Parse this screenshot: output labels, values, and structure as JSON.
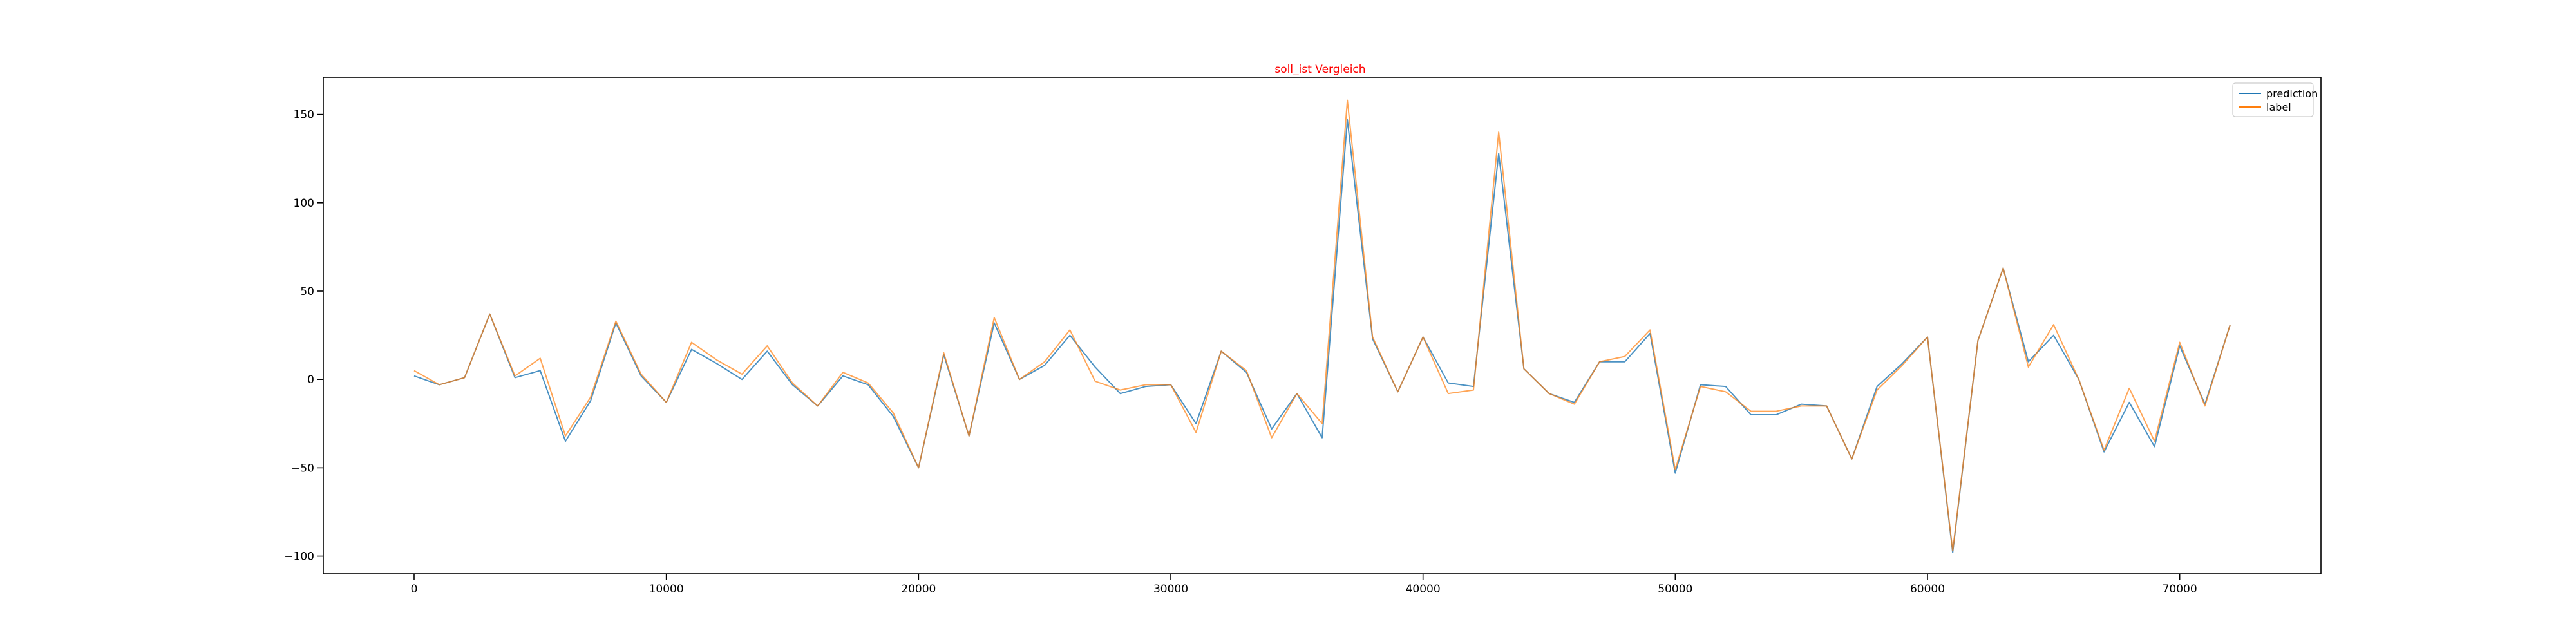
{
  "chart_data": {
    "type": "line",
    "title": "soll_ist Vergleich",
    "title_color": "#ff0000",
    "xlabel": "",
    "ylabel": "",
    "xlim": [
      -3600,
      75600
    ],
    "ylim": [
      -110,
      171
    ],
    "xticks": [
      0,
      10000,
      20000,
      30000,
      40000,
      50000,
      60000,
      70000
    ],
    "yticks": [
      -100,
      -50,
      0,
      50,
      100,
      150
    ],
    "grid": false,
    "legend_position": "top-right",
    "x": [
      0,
      1000,
      2000,
      3000,
      4000,
      5000,
      6000,
      7000,
      8000,
      9000,
      10000,
      11000,
      12000,
      13000,
      14000,
      15000,
      16000,
      17000,
      18000,
      19000,
      20000,
      21000,
      22000,
      23000,
      24000,
      25000,
      26000,
      27000,
      28000,
      29000,
      30000,
      31000,
      32000,
      33000,
      34000,
      35000,
      36000,
      37000,
      38000,
      39000,
      40000,
      41000,
      42000,
      43000,
      44000,
      45000,
      46000,
      47000,
      48000,
      49000,
      50000,
      51000,
      52000,
      53000,
      54000,
      55000,
      56000,
      57000,
      58000,
      59000,
      60000,
      61000,
      62000,
      63000,
      64000,
      65000,
      66000,
      67000,
      68000,
      69000,
      70000,
      71000,
      72000
    ],
    "series": [
      {
        "name": "prediction",
        "color": "#1f77b4",
        "values": [
          2,
          -3,
          1,
          37,
          1,
          5,
          -35,
          -12,
          32,
          2,
          -13,
          17,
          9,
          0,
          16,
          -3,
          -15,
          2,
          -3,
          -21,
          -50,
          14,
          -32,
          32,
          0,
          8,
          25,
          7,
          -8,
          -4,
          -3,
          -25,
          16,
          4,
          -28,
          -8,
          -33,
          147,
          23,
          -7,
          24,
          -2,
          -4,
          128,
          6,
          -8,
          -13,
          10,
          10,
          26,
          -53,
          -3,
          -4,
          -20,
          -20,
          -14,
          -15,
          -45,
          -4,
          9,
          24,
          -98,
          22,
          63,
          10,
          25,
          0,
          -41,
          -13,
          -38,
          19,
          -14,
          31
        ]
      },
      {
        "name": "label",
        "color": "#ff7f0e",
        "values": [
          5,
          -3,
          1,
          37,
          2,
          12,
          -32,
          -10,
          33,
          3,
          -13,
          21,
          11,
          3,
          19,
          -2,
          -15,
          4,
          -2,
          -19,
          -50,
          15,
          -32,
          35,
          0,
          10,
          28,
          -1,
          -6,
          -3,
          -3,
          -30,
          16,
          5,
          -33,
          -8,
          -25,
          158,
          24,
          -7,
          24,
          -8,
          -6,
          140,
          6,
          -8,
          -14,
          10,
          13,
          28,
          -51,
          -4,
          -7,
          -18,
          -18,
          -15,
          -15,
          -45,
          -6,
          8,
          24,
          -97,
          22,
          63,
          7,
          31,
          0,
          -40,
          -5,
          -35,
          21,
          -15,
          31
        ]
      }
    ]
  }
}
